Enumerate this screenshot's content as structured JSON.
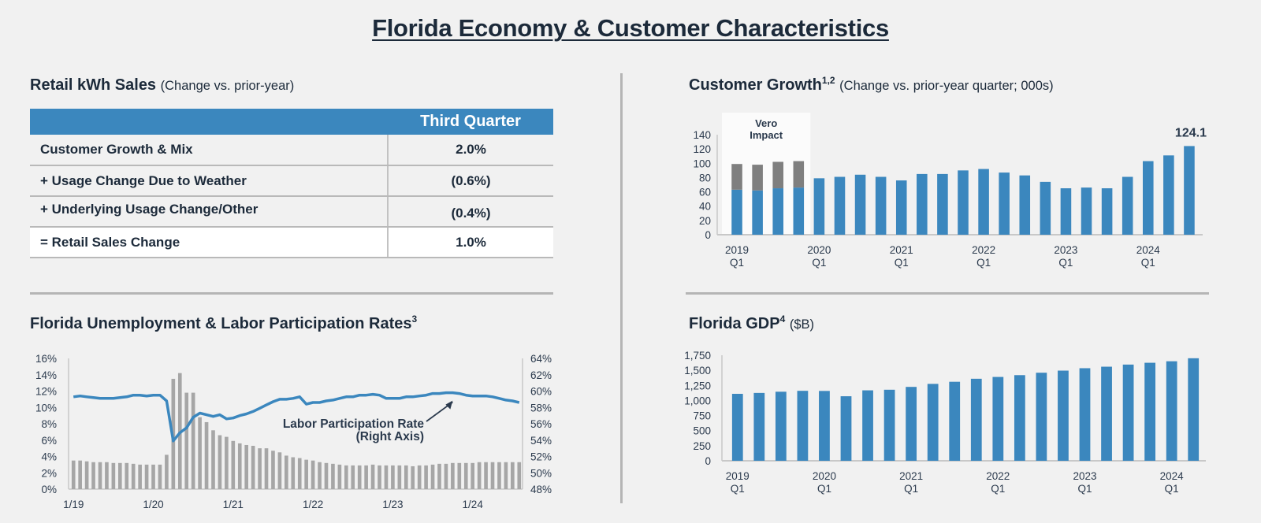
{
  "page": {
    "title": "Florida Economy & Customer Characteristics"
  },
  "retail_kwh": {
    "title": "Retail kWh Sales",
    "subtitle": "(Change vs. prior-year)",
    "column_header": "Third Quarter",
    "rows": [
      {
        "label": "Customer Growth & Mix",
        "value": "2.0%"
      },
      {
        "label": "+ Usage Change Due to Weather",
        "value": "(0.6%)"
      },
      {
        "label": "+ Underlying Usage Change/Other",
        "value": "(0.4%)"
      },
      {
        "label": "= Retail Sales Change",
        "value": "1.0%"
      }
    ]
  },
  "customer_growth": {
    "title": "Customer Growth",
    "superscript": "1,2",
    "subtitle": "(Change vs. prior-year quarter; 000s)"
  },
  "unemployment": {
    "title": "Florida Unemployment & Labor Participation Rates",
    "superscript": "3"
  },
  "gdp": {
    "title": "Florida GDP",
    "superscript": "4",
    "subtitle": "($B)"
  },
  "chart_data": [
    {
      "id": "customer_growth",
      "type": "bar",
      "stacked": true,
      "title": "Customer Growth (Change vs. prior-year quarter; 000s)",
      "xlabel": "",
      "ylabel": "",
      "ylim": [
        0,
        140
      ],
      "yticks": [
        0,
        20,
        40,
        60,
        80,
        100,
        120,
        140
      ],
      "xtick_labels": [
        {
          "index": 0,
          "line1": "2019",
          "line2": "Q1"
        },
        {
          "index": 4,
          "line1": "2020",
          "line2": "Q1"
        },
        {
          "index": 8,
          "line1": "2021",
          "line2": "Q1"
        },
        {
          "index": 12,
          "line1": "2022",
          "line2": "Q1"
        },
        {
          "index": 16,
          "line1": "2023",
          "line2": "Q1"
        },
        {
          "index": 20,
          "line1": "2024",
          "line2": "Q1"
        }
      ],
      "categories": [
        "2019Q1",
        "2019Q2",
        "2019Q3",
        "2019Q4",
        "2020Q1",
        "2020Q2",
        "2020Q3",
        "2020Q4",
        "2021Q1",
        "2021Q2",
        "2021Q3",
        "2021Q4",
        "2022Q1",
        "2022Q2",
        "2022Q3",
        "2022Q4",
        "2023Q1",
        "2023Q2",
        "2023Q3",
        "2023Q4",
        "2024Q1",
        "2024Q2",
        "2024Q3"
      ],
      "series": [
        {
          "name": "Customer growth",
          "color": "#3b87be",
          "values": [
            63,
            62,
            65,
            66,
            79,
            81,
            84,
            81,
            76,
            85,
            85,
            90,
            92,
            87,
            83,
            74,
            65,
            66,
            65,
            81,
            103,
            111,
            124.1
          ]
        },
        {
          "name": "Vero impact",
          "color": "#7f7f7f",
          "values": [
            36,
            36,
            37,
            37,
            0,
            0,
            0,
            0,
            0,
            0,
            0,
            0,
            0,
            0,
            0,
            0,
            0,
            0,
            0,
            0,
            0,
            0,
            0
          ]
        }
      ],
      "annotations": [
        {
          "text_line1": "Vero",
          "text_line2": "Impact",
          "spans_categories": [
            0,
            3
          ]
        },
        {
          "text": "124.1",
          "category_index": 22
        }
      ],
      "grid": false
    },
    {
      "id": "unemployment",
      "type": "bar+line",
      "title": "Florida Unemployment & Labor Participation Rates",
      "xlabel": "",
      "ylabel": "",
      "ylim_left": [
        0,
        16
      ],
      "ylim_right": [
        48,
        64
      ],
      "yticks_left": [
        "0%",
        "2%",
        "4%",
        "6%",
        "8%",
        "10%",
        "12%",
        "14%",
        "16%"
      ],
      "yticks_right": [
        "48%",
        "50%",
        "52%",
        "54%",
        "56%",
        "58%",
        "60%",
        "62%",
        "64%"
      ],
      "xtick_labels": [
        {
          "index": 0,
          "label": "1/19"
        },
        {
          "index": 12,
          "label": "1/20"
        },
        {
          "index": 24,
          "label": "1/21"
        },
        {
          "index": 36,
          "label": "1/22"
        },
        {
          "index": 48,
          "label": "1/23"
        },
        {
          "index": 60,
          "label": "1/24"
        }
      ],
      "series": [
        {
          "name": "Unemployment Rate",
          "axis": "left",
          "color": "#a6a6a6",
          "type": "bar",
          "values": [
            3.5,
            3.5,
            3.4,
            3.3,
            3.3,
            3.3,
            3.2,
            3.2,
            3.2,
            3.1,
            3.0,
            3.0,
            3.0,
            3.0,
            4.2,
            13.5,
            14.2,
            11.8,
            11.8,
            8.8,
            8.2,
            7.2,
            6.6,
            6.4,
            5.9,
            5.6,
            5.4,
            5.3,
            5.0,
            5.0,
            4.7,
            4.5,
            4.1,
            3.9,
            3.8,
            3.6,
            3.5,
            3.3,
            3.2,
            3.1,
            3.0,
            2.9,
            2.9,
            2.9,
            2.9,
            3.0,
            2.9,
            2.9,
            2.9,
            2.9,
            2.9,
            2.8,
            2.9,
            2.9,
            3.0,
            3.1,
            3.1,
            3.2,
            3.2,
            3.2,
            3.2,
            3.3,
            3.3,
            3.3,
            3.3,
            3.3,
            3.3,
            3.3
          ]
        },
        {
          "name": "Labor Participation Rate (Right Axis)",
          "axis": "right",
          "color": "#3b87be",
          "type": "line",
          "values": [
            59.3,
            59.4,
            59.3,
            59.2,
            59.1,
            59.1,
            59.1,
            59.2,
            59.3,
            59.5,
            59.5,
            59.4,
            59.5,
            59.5,
            58.8,
            53.9,
            54.9,
            55.5,
            56.8,
            57.3,
            57.1,
            56.9,
            57.1,
            56.6,
            56.7,
            57.0,
            57.2,
            57.5,
            57.9,
            58.3,
            58.7,
            59.0,
            59.0,
            59.1,
            59.3,
            58.4,
            58.6,
            58.6,
            58.8,
            58.9,
            59.1,
            59.3,
            59.3,
            59.5,
            59.5,
            59.6,
            59.5,
            59.1,
            59.1,
            59.1,
            59.3,
            59.3,
            59.4,
            59.5,
            59.7,
            59.7,
            59.8,
            59.8,
            59.7,
            59.5,
            59.4,
            59.4,
            59.4,
            59.3,
            59.1,
            58.9,
            58.8,
            58.6
          ]
        }
      ],
      "annotations": [
        {
          "text_line1": "Labor Participation Rate",
          "text_line2": "(Right Axis)",
          "arrow_to_index": 57
        }
      ],
      "grid": false
    },
    {
      "id": "gdp",
      "type": "bar",
      "title": "Florida GDP ($B)",
      "xlabel": "",
      "ylabel": "",
      "ylim": [
        0,
        1750
      ],
      "yticks": [
        "0",
        "250",
        "500",
        "750",
        "1,000",
        "1,250",
        "1,500",
        "1,750"
      ],
      "ytick_values": [
        0,
        250,
        500,
        750,
        1000,
        1250,
        1500,
        1750
      ],
      "xtick_labels": [
        {
          "index": 0,
          "line1": "2019",
          "line2": "Q1"
        },
        {
          "index": 4,
          "line1": "2020",
          "line2": "Q1"
        },
        {
          "index": 8,
          "line1": "2021",
          "line2": "Q1"
        },
        {
          "index": 12,
          "line1": "2022",
          "line2": "Q1"
        },
        {
          "index": 16,
          "line1": "2023",
          "line2": "Q1"
        },
        {
          "index": 20,
          "line1": "2024",
          "line2": "Q1"
        }
      ],
      "categories": [
        "2019Q1",
        "2019Q2",
        "2019Q3",
        "2019Q4",
        "2020Q1",
        "2020Q2",
        "2020Q3",
        "2020Q4",
        "2021Q1",
        "2021Q2",
        "2021Q3",
        "2021Q4",
        "2022Q1",
        "2022Q2",
        "2022Q3",
        "2022Q4",
        "2023Q1",
        "2023Q2",
        "2023Q3",
        "2023Q4",
        "2024Q1",
        "2024Q2"
      ],
      "series": [
        {
          "name": "Florida GDP",
          "color": "#3b87be",
          "values": [
            1110,
            1125,
            1145,
            1160,
            1158,
            1070,
            1168,
            1178,
            1225,
            1275,
            1310,
            1360,
            1390,
            1420,
            1460,
            1495,
            1535,
            1560,
            1595,
            1625,
            1650,
            1700
          ]
        }
      ],
      "grid": false
    }
  ]
}
